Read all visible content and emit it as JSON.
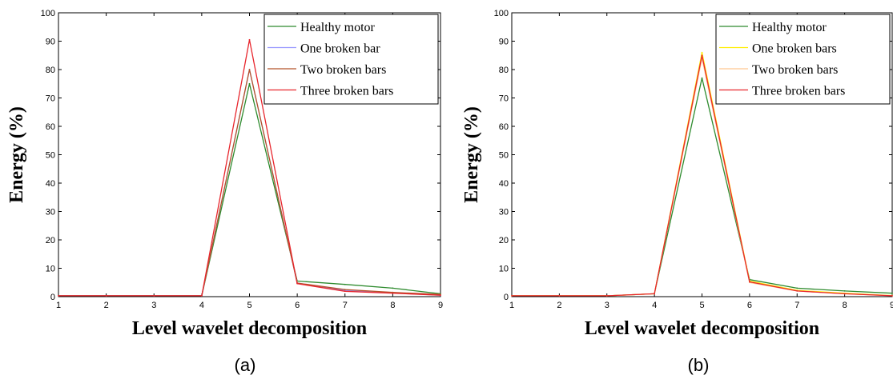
{
  "chart_data": [
    {
      "type": "line",
      "caption": "(a)",
      "xlabel": "Level wavelet decomposition",
      "ylabel": "Energy (%)",
      "xlim": [
        1,
        9
      ],
      "ylim": [
        0,
        100
      ],
      "xticks": [
        1,
        2,
        3,
        4,
        5,
        6,
        7,
        8,
        9
      ],
      "yticks": [
        0,
        10,
        20,
        30,
        40,
        50,
        60,
        70,
        80,
        90,
        100
      ],
      "grid": false,
      "legend_position": "top-right",
      "x": [
        1,
        2,
        3,
        4,
        5,
        6,
        7,
        8,
        9
      ],
      "series": [
        {
          "name": "Healthy motor",
          "color": "#2e8b2e",
          "values": [
            0.3,
            0.3,
            0.3,
            0.3,
            75,
            5.5,
            4.3,
            3.0,
            1.0
          ]
        },
        {
          "name": "One broken bar",
          "color": "#9999ff",
          "values": [
            0.3,
            0.3,
            0.3,
            0.3,
            80,
            4.8,
            2.2,
            1.3,
            0.5
          ]
        },
        {
          "name": "Two broken bars",
          "color": "#b5532a",
          "values": [
            0.3,
            0.3,
            0.3,
            0.3,
            80,
            4.8,
            2.5,
            1.5,
            0.8
          ]
        },
        {
          "name": "Three broken bars",
          "color": "#e8262d",
          "values": [
            0.3,
            0.3,
            0.3,
            0.3,
            90.5,
            4.6,
            1.9,
            1.2,
            0.5
          ]
        }
      ]
    },
    {
      "type": "line",
      "caption": "(b)",
      "xlabel": "Level wavelet decomposition",
      "ylabel": "Energy (%)",
      "xlim": [
        1,
        9
      ],
      "ylim": [
        0,
        100
      ],
      "xticks": [
        1,
        2,
        3,
        4,
        5,
        6,
        7,
        8,
        9
      ],
      "yticks": [
        0,
        10,
        20,
        30,
        40,
        50,
        60,
        70,
        80,
        90,
        100
      ],
      "grid": false,
      "legend_position": "top-right",
      "x": [
        1,
        2,
        3,
        4,
        5,
        6,
        7,
        8,
        9
      ],
      "series": [
        {
          "name": "Healthy motor",
          "color": "#2e8b2e",
          "values": [
            0.3,
            0.3,
            0.3,
            1.0,
            77,
            6.0,
            3.0,
            2.0,
            1.2
          ]
        },
        {
          "name": "One broken bars",
          "color": "#ffee00",
          "values": [
            0.3,
            0.3,
            0.3,
            1.0,
            86,
            5.5,
            2.2,
            1.2,
            0.4
          ]
        },
        {
          "name": "Two broken bars",
          "color": "#ffc890",
          "values": [
            0.3,
            0.3,
            0.3,
            1.0,
            84,
            5.0,
            2.0,
            1.0,
            0.3
          ]
        },
        {
          "name": "Three broken bars",
          "color": "#e8262d",
          "values": [
            0.3,
            0.3,
            0.3,
            1.0,
            85,
            5.2,
            2.0,
            1.0,
            0.3
          ]
        }
      ]
    }
  ]
}
